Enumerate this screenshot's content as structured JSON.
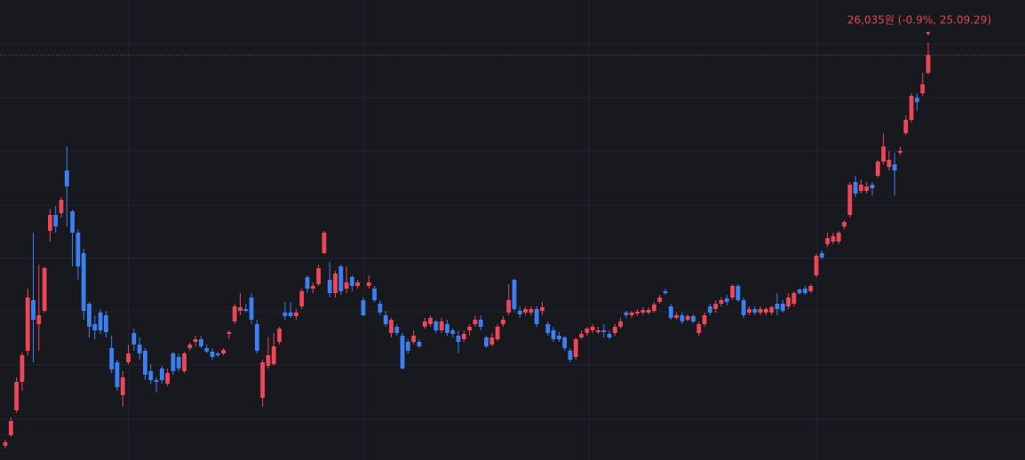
{
  "chart_data": {
    "type": "candlestick",
    "annotation": "26,035원 (-0.9%, 25.09.29)",
    "up_color": "#ec4657",
    "down_color": "#3b7ff0",
    "ylim": [
      18045,
      26851
    ],
    "open": [
      18317,
      18521,
      18997,
      19541,
      20136,
      21105,
      20646,
      20901,
      22431,
      22737,
      22771,
      23587,
      22805,
      22397,
      22006,
      21037,
      20646,
      20867,
      20816,
      20187,
      19915,
      19286,
      19915,
      20476,
      20255,
      20136,
      19745,
      19575,
      19796,
      19507,
      20085,
      20017,
      19745,
      20187,
      20306,
      20357,
      20187,
      20119,
      20085,
      20085,
      20459,
      20697,
      20901,
      20935,
      21156,
      20646,
      19235,
      19847,
      19881,
      20306,
      20867,
      20867,
      20799,
      20986,
      21547,
      21326,
      21411,
      22006,
      21496,
      21241,
      21751,
      21326,
      21547,
      21377,
      21105,
      21377,
      21326,
      21037,
      20816,
      20476,
      20595,
      20425,
      20306,
      20306,
      20306,
      20595,
      20646,
      20697,
      20527,
      20646,
      20527,
      20425,
      20357,
      20527,
      20646,
      20731,
      20391,
      20255,
      20357,
      20646,
      20867,
      21496,
      20901,
      20867,
      20867,
      20935,
      20901,
      20646,
      20527,
      20425,
      20391,
      20136,
      20017,
      20391,
      20476,
      20527,
      20493,
      20527,
      20459,
      20476,
      20595,
      20867,
      20816,
      20850,
      20867,
      20867,
      20901,
      21071,
      21275,
      20986,
      20765,
      20816,
      20731,
      20799,
      20476,
      20646,
      20986,
      20935,
      21037,
      21139,
      21156,
      21377,
      21105,
      20867,
      20935,
      20867,
      20867,
      20867,
      21037,
      21037,
      20986,
      21037,
      21309,
      21326,
      21275,
      21581,
      22006,
      22176,
      22227,
      22227,
      22516,
      22737,
      23366,
      23196,
      23196,
      23315,
      23485,
      23757,
      23655,
      23706,
      23927,
      24301,
      24556,
      24981,
      25066,
      25457
    ],
    "high": [
      18436,
      18861,
      19626,
      20102,
      21326,
      22397,
      21785,
      21751,
      22856,
      22907,
      23077,
      24046,
      22839,
      22465,
      22091,
      21071,
      20816,
      20935,
      20901,
      20425,
      19966,
      19745,
      20255,
      20561,
      20391,
      20187,
      19881,
      19626,
      19847,
      19796,
      20119,
      20085,
      20119,
      20289,
      20425,
      20425,
      20255,
      20187,
      20119,
      20187,
      20527,
      21037,
      21241,
      21037,
      21241,
      20731,
      19966,
      20391,
      20476,
      20595,
      21071,
      21071,
      20935,
      21326,
      21581,
      21445,
      21785,
      22431,
      21836,
      21666,
      21785,
      21751,
      21581,
      21496,
      21156,
      21581,
      21377,
      21105,
      20901,
      20765,
      20646,
      20476,
      20357,
      20527,
      20357,
      20765,
      20816,
      20731,
      20765,
      20731,
      20561,
      20527,
      20527,
      20646,
      20816,
      20816,
      20425,
      20476,
      20646,
      20799,
      21411,
      21513,
      20986,
      20986,
      20986,
      20986,
      21071,
      20697,
      20595,
      20493,
      20425,
      20187,
      20391,
      20527,
      20595,
      20646,
      20595,
      20646,
      20527,
      20646,
      20765,
      20901,
      20901,
      20935,
      20969,
      20969,
      21071,
      21207,
      21326,
      21037,
      20867,
      20867,
      20833,
      20833,
      20697,
      20867,
      21037,
      21105,
      21156,
      21207,
      21411,
      21411,
      21156,
      20986,
      20986,
      20986,
      20969,
      21003,
      21241,
      21105,
      21241,
      21275,
      21326,
      21377,
      21411,
      21989,
      22057,
      22397,
      22397,
      22431,
      22635,
      23366,
      23485,
      23417,
      23366,
      23366,
      23791,
      24301,
      23961,
      23927,
      24046,
      24641,
      25066,
      25066,
      25457,
      26035
    ],
    "low": [
      18266,
      18487,
      18946,
      19371,
      20051,
      19915,
      20136,
      20867,
      22227,
      22397,
      22686,
      22516,
      21751,
      21496,
      20731,
      20391,
      20357,
      20459,
      20391,
      19711,
      19371,
      19065,
      19881,
      20136,
      19966,
      19575,
      19507,
      19337,
      19507,
      19456,
      19677,
      19745,
      19711,
      20136,
      20221,
      20187,
      20085,
      19966,
      20017,
      20051,
      20357,
      20646,
      20816,
      20867,
      20646,
      20085,
      19065,
      19796,
      19847,
      20255,
      20731,
      20765,
      20731,
      20935,
      21241,
      21241,
      21377,
      21989,
      21156,
      21156,
      21207,
      21241,
      21275,
      21326,
      20799,
      21326,
      21071,
      20816,
      20595,
      20391,
      20425,
      19779,
      20085,
      20255,
      20187,
      20561,
      20595,
      20476,
      20476,
      20425,
      20391,
      20085,
      20306,
      20425,
      20595,
      20527,
      20187,
      20221,
      20323,
      20595,
      20816,
      20901,
      20765,
      20816,
      20816,
      20595,
      20816,
      20425,
      20306,
      20306,
      20136,
      19915,
      19966,
      20357,
      20425,
      20476,
      20459,
      20391,
      20357,
      20425,
      20561,
      20765,
      20765,
      20799,
      20816,
      20833,
      20867,
      21037,
      21207,
      20731,
      20731,
      20646,
      20697,
      20663,
      20425,
      20595,
      20816,
      20867,
      20986,
      21003,
      21105,
      21071,
      20765,
      20816,
      20816,
      20816,
      20816,
      20816,
      20816,
      20867,
      20935,
      20986,
      21207,
      21207,
      21241,
      21547,
      21887,
      22125,
      22176,
      22176,
      22465,
      22686,
      23077,
      23145,
      23145,
      23111,
      23451,
      23706,
      23587,
      23111,
      23876,
      24267,
      24505,
      24726,
      25015,
      25423
    ],
    "close": [
      18385,
      18793,
      19541,
      20051,
      21156,
      20731,
      20816,
      21717,
      22737,
      22516,
      23026,
      23281,
      22397,
      21751,
      20901,
      20595,
      20527,
      20527,
      20493,
      19779,
      19439,
      19626,
      20085,
      20255,
      20085,
      19677,
      19575,
      19541,
      19575,
      19711,
      19745,
      19796,
      20085,
      20255,
      20357,
      20221,
      20119,
      20017,
      20051,
      20153,
      20493,
      20986,
      20969,
      20901,
      20731,
      20136,
      19915,
      20051,
      20221,
      20561,
      20799,
      20799,
      20867,
      21275,
      21326,
      21377,
      21717,
      22397,
      21241,
      21615,
      21275,
      21445,
      21377,
      21445,
      20816,
      21445,
      21105,
      20867,
      20646,
      20731,
      20476,
      19796,
      20136,
      20425,
      20221,
      20697,
      20765,
      20527,
      20697,
      20476,
      20459,
      20306,
      20459,
      20595,
      20731,
      20595,
      20221,
      20391,
      20595,
      20731,
      21105,
      20935,
      20833,
      20935,
      20935,
      20646,
      20969,
      20476,
      20357,
      20357,
      20187,
      19966,
      20357,
      20459,
      20561,
      20595,
      20527,
      20493,
      20391,
      20595,
      20697,
      20816,
      20867,
      20884,
      20918,
      20918,
      21020,
      21156,
      21241,
      20765,
      20816,
      20697,
      20799,
      20697,
      20646,
      20816,
      20867,
      21037,
      21105,
      21071,
      21377,
      21105,
      20816,
      20935,
      20867,
      20935,
      20935,
      20969,
      20935,
      20901,
      21156,
      21241,
      21241,
      21241,
      21377,
      21955,
      21921,
      22295,
      22329,
      22397,
      22601,
      23315,
      23145,
      23315,
      23281,
      23247,
      23757,
      24046,
      23791,
      23587,
      23961,
      24556,
      25015,
      24896,
      25236,
      25797
    ]
  }
}
